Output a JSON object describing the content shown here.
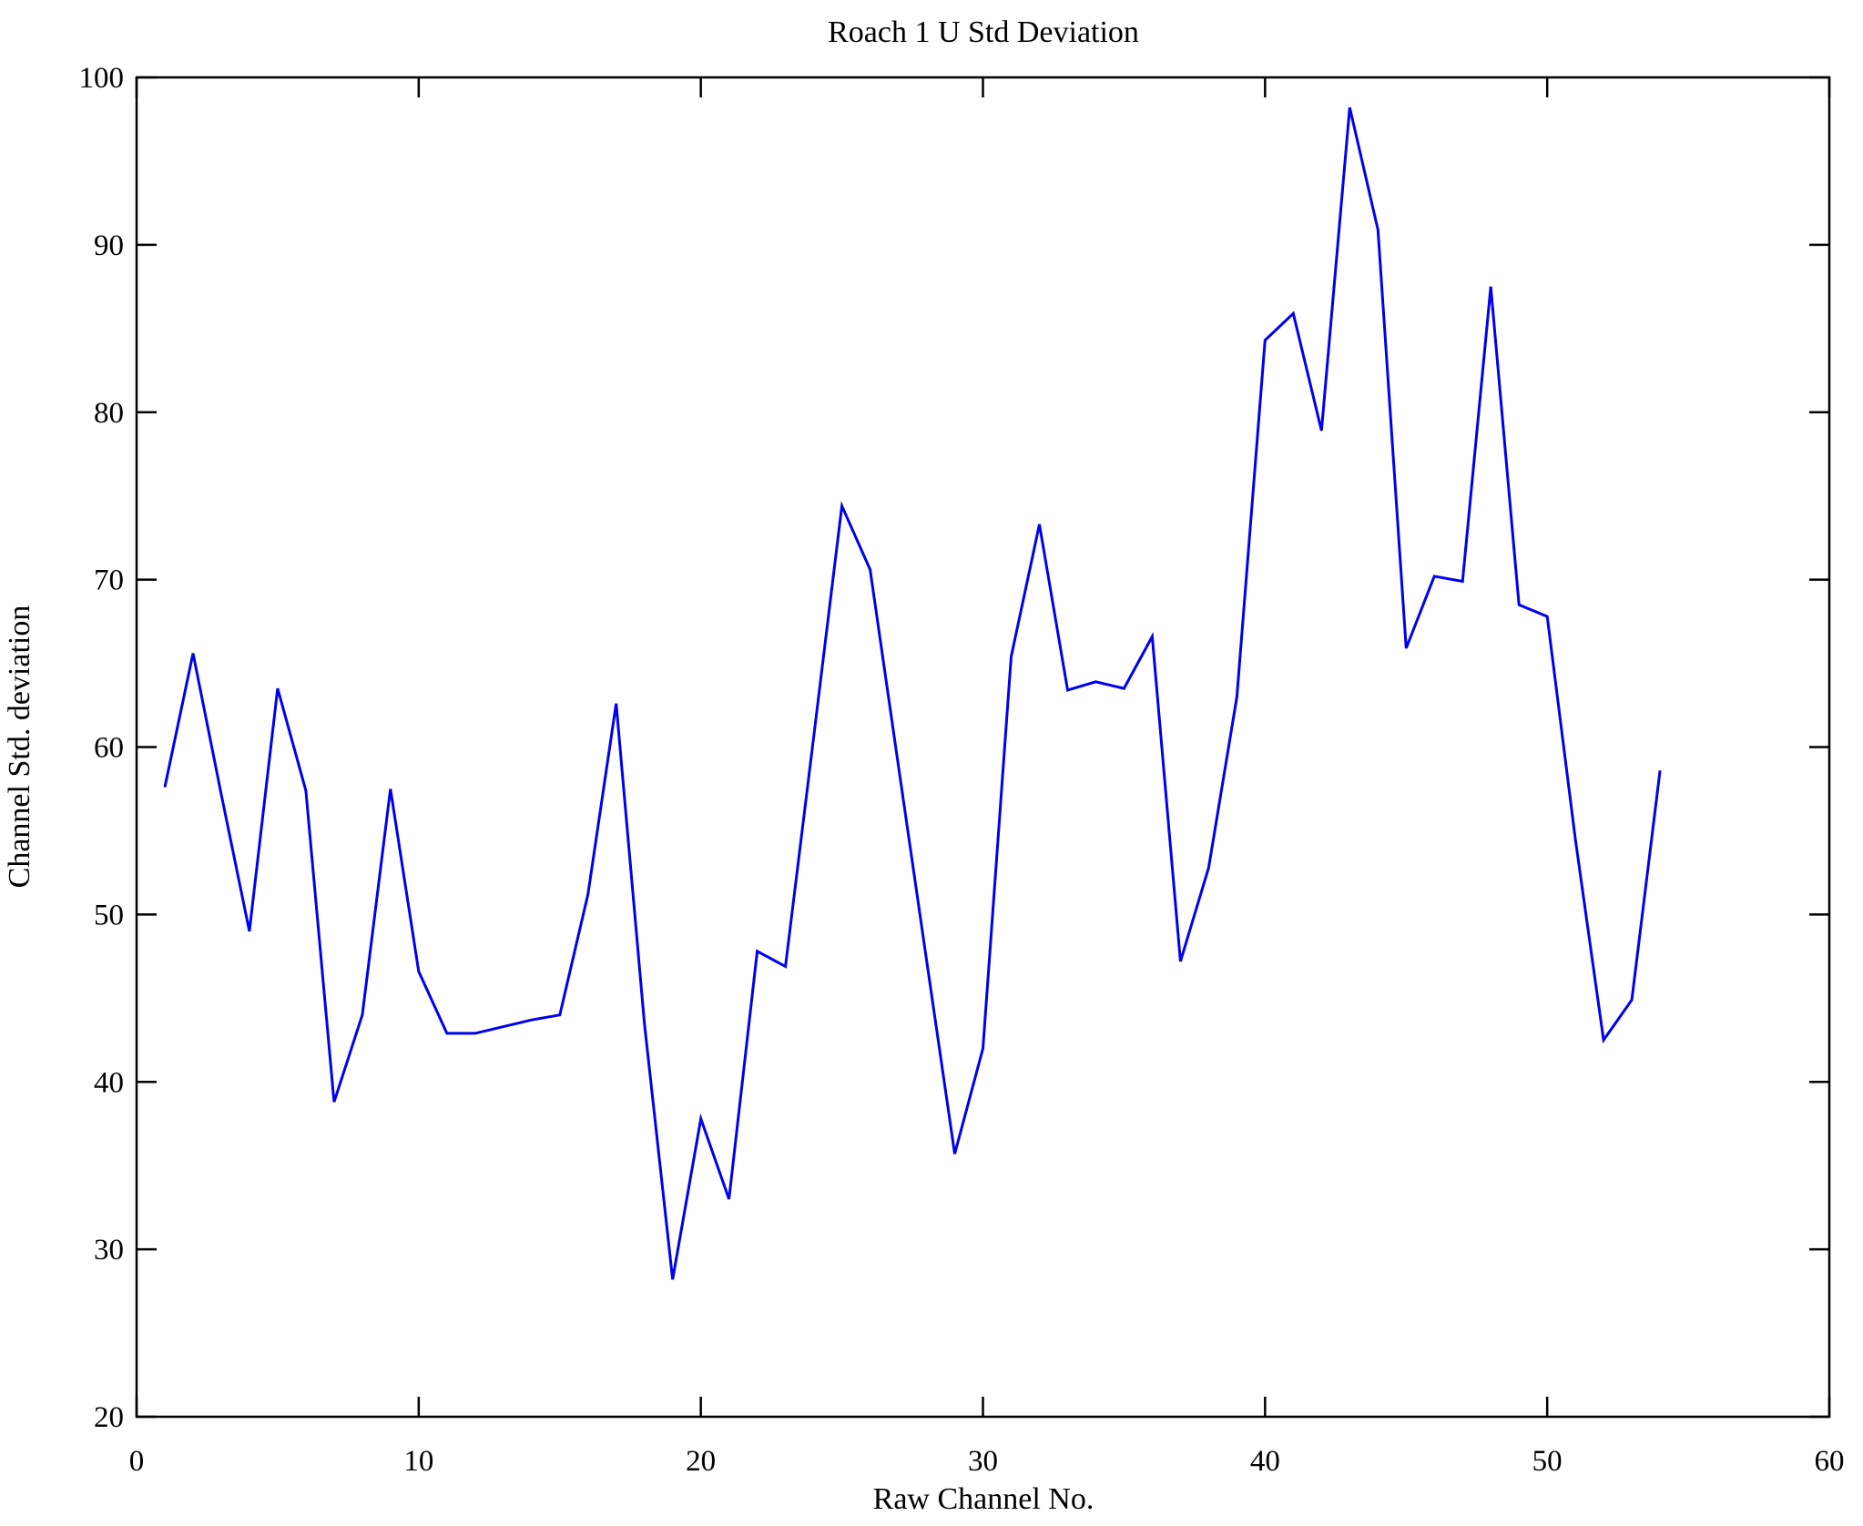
{
  "page": {
    "background": "#ffffff",
    "window_title": "Roach 1 U Std Deviation"
  },
  "chart_data": {
    "type": "line",
    "title": "Roach 1 U Std Deviation",
    "xlabel": "Raw Channel No.",
    "ylabel": "Channel Std. deviation",
    "xlim": [
      0,
      60
    ],
    "ylim": [
      20,
      100
    ],
    "x_ticks": [
      0,
      10,
      20,
      30,
      40,
      50,
      60
    ],
    "y_ticks": [
      20,
      30,
      40,
      50,
      60,
      70,
      80,
      90,
      100
    ],
    "grid": false,
    "legend": null,
    "line_color": "#0000EE",
    "axis_color": "#000000",
    "series": [
      {
        "name": "channel-std-deviation",
        "x": [
          1,
          2,
          3,
          4,
          5,
          6,
          7,
          8,
          9,
          10,
          11,
          12,
          13,
          14,
          15,
          16,
          17,
          18,
          19,
          20,
          21,
          22,
          23,
          24,
          25,
          26,
          27,
          28,
          29,
          30,
          31,
          32,
          33,
          34,
          35,
          36,
          37,
          38,
          39,
          40,
          41,
          42,
          43,
          44,
          45,
          46,
          47,
          48,
          49,
          50,
          51,
          52,
          53,
          54
        ],
        "values": [
          57.6,
          65.6,
          57.2,
          49.0,
          63.5,
          57.4,
          38.8,
          44.0,
          57.5,
          46.6,
          42.9,
          42.9,
          43.3,
          43.7,
          44.0,
          51.2,
          62.6,
          43.5,
          28.2,
          37.8,
          33.0,
          47.8,
          46.9,
          60.6,
          74.4,
          70.6,
          58.9,
          47.3,
          35.7,
          42.0,
          65.4,
          73.3,
          63.4,
          63.9,
          63.5,
          66.6,
          47.2,
          52.8,
          63.0,
          84.3,
          85.9,
          78.9,
          98.2,
          90.9,
          65.9,
          70.2,
          69.9,
          87.5,
          68.5,
          67.8,
          54.5,
          42.5,
          44.9,
          58.6
        ]
      }
    ]
  }
}
